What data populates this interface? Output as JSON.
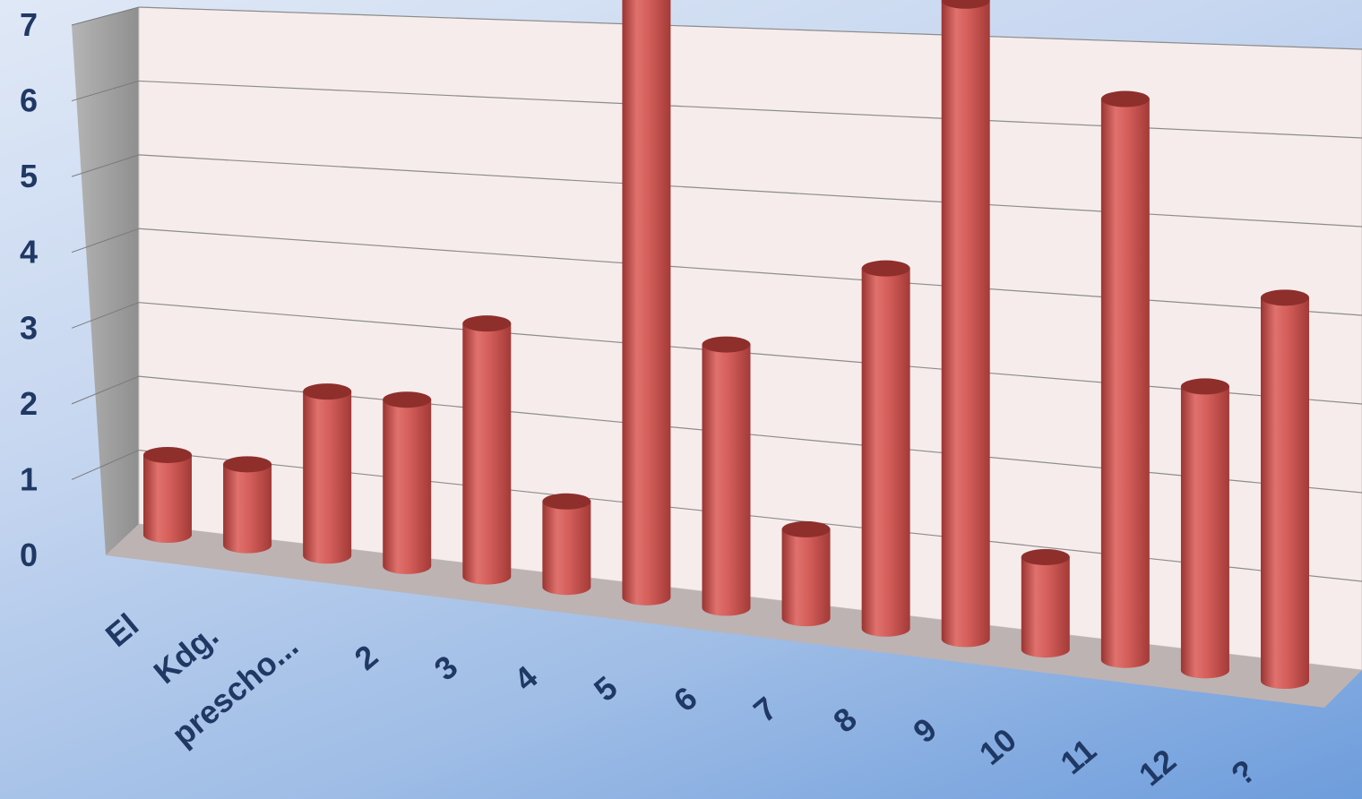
{
  "chart_data": {
    "type": "bar",
    "style": "3d-cylinder",
    "categories": [
      "El",
      "Kdg.",
      "prescho...",
      "2",
      "3",
      "4",
      "5",
      "6",
      "7",
      "8",
      "9",
      "10",
      "11",
      "12",
      "?"
    ],
    "values": [
      1,
      1,
      2,
      2,
      3,
      1,
      7,
      3,
      1,
      4,
      7,
      1,
      6,
      3,
      4
    ],
    "ylim": [
      0,
      7
    ],
    "yticks": [
      "0",
      "1",
      "2",
      "3",
      "4",
      "5",
      "6",
      "7"
    ],
    "grid": true,
    "legend": "none",
    "colors": {
      "bar": "#c0504d",
      "bar_light": "#e07a77",
      "bar_dark": "#8e2f2c",
      "back_wall": "#f7ecec",
      "side_wall": "#a6a6a6",
      "floor": "#bdb3b3",
      "gridline": "#8c8c8c",
      "tick_label": "#1f3864"
    }
  }
}
